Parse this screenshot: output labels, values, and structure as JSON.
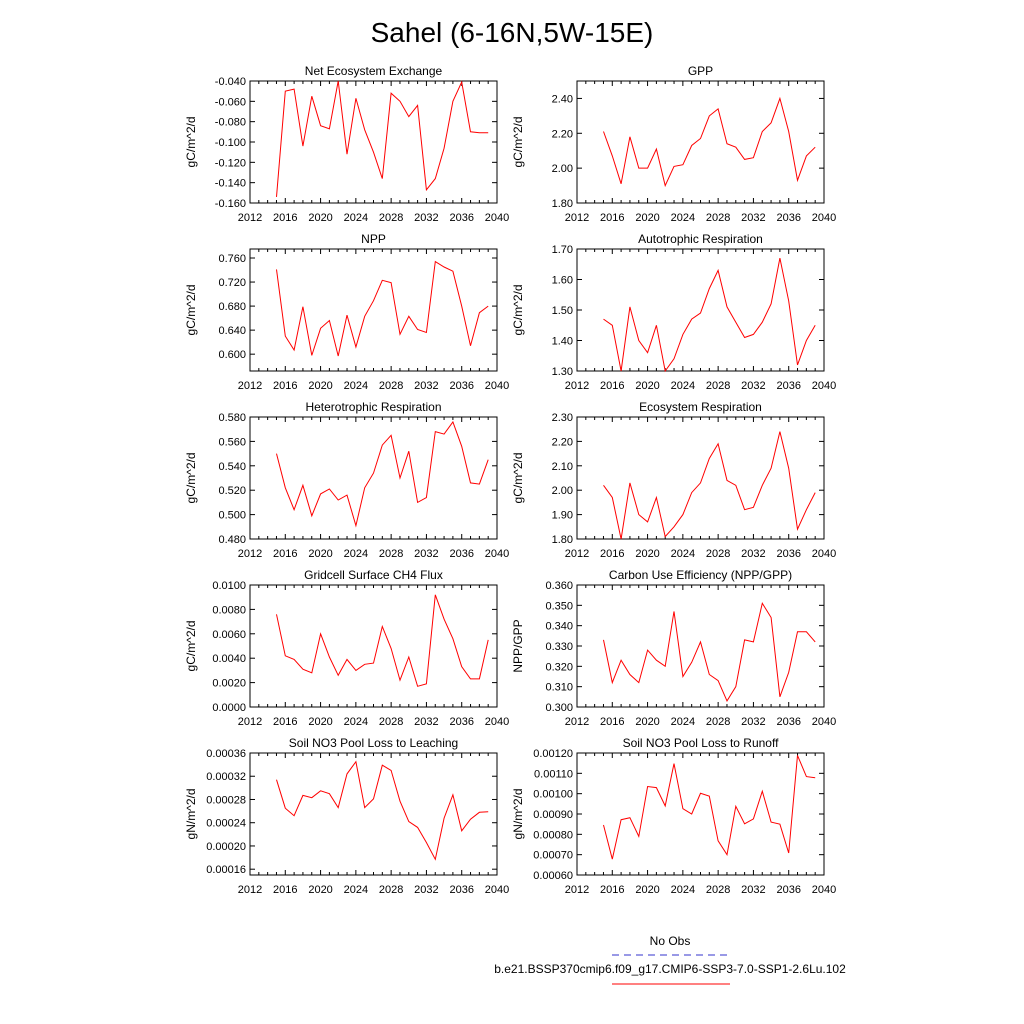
{
  "figure": {
    "title": "Sahel (6-16N,5W-15E)",
    "colors": {
      "series": "#ff0000",
      "obs": "#3333cc",
      "axis": "#000000"
    },
    "legend": {
      "obs_label": "No Obs",
      "case_label": "b.e21.BSSP370cmip6.f09_g17.CMIP6-SSP3-7.0-SSP1-2.6Lu.102"
    }
  },
  "chart_data": [
    {
      "type": "line",
      "title": "Net Ecosystem Exchange",
      "ylabel": "gC/m^2/d",
      "xlim": [
        2012,
        2040
      ],
      "xticks": [
        2012,
        2016,
        2020,
        2024,
        2028,
        2032,
        2036,
        2040
      ],
      "ylim": [
        -0.16,
        -0.04
      ],
      "yticks": [
        "-0.160",
        "-0.140",
        "-0.120",
        "-0.100",
        "-0.080",
        "-0.060",
        "-0.040"
      ],
      "x": [
        2015,
        2016,
        2017,
        2018,
        2019,
        2020,
        2021,
        2022,
        2023,
        2024,
        2025,
        2026,
        2027,
        2028,
        2029,
        2030,
        2031,
        2032,
        2033,
        2034,
        2035,
        2036,
        2037,
        2038,
        2039
      ],
      "series": [
        {
          "values": [
            -0.154,
            -0.05,
            -0.048,
            -0.104,
            -0.055,
            -0.084,
            -0.087,
            -0.04,
            -0.112,
            -0.057,
            -0.088,
            -0.11,
            -0.136,
            -0.052,
            -0.06,
            -0.075,
            -0.064,
            -0.147,
            -0.136,
            -0.106,
            -0.06,
            -0.041,
            -0.09,
            -0.091,
            -0.091
          ]
        }
      ]
    },
    {
      "type": "line",
      "title": "GPP",
      "ylabel": "gC/m^2/d",
      "xlim": [
        2012,
        2040
      ],
      "xticks": [
        2012,
        2016,
        2020,
        2024,
        2028,
        2032,
        2036,
        2040
      ],
      "ylim": [
        1.8,
        2.5
      ],
      "yticks": [
        "1.80",
        "2.00",
        "2.20",
        "2.40"
      ],
      "x": [
        2015,
        2016,
        2017,
        2018,
        2019,
        2020,
        2021,
        2022,
        2023,
        2024,
        2025,
        2026,
        2027,
        2028,
        2029,
        2030,
        2031,
        2032,
        2033,
        2034,
        2035,
        2036,
        2037,
        2038,
        2039
      ],
      "series": [
        {
          "values": [
            2.21,
            2.07,
            1.91,
            2.18,
            2.0,
            2.0,
            2.11,
            1.9,
            2.01,
            2.02,
            2.13,
            2.17,
            2.3,
            2.34,
            2.14,
            2.12,
            2.05,
            2.06,
            2.21,
            2.26,
            2.4,
            2.21,
            1.93,
            2.07,
            2.12
          ]
        }
      ]
    },
    {
      "type": "line",
      "title": "NPP",
      "ylabel": "gC/m^2/d",
      "xlim": [
        2012,
        2040
      ],
      "xticks": [
        2012,
        2016,
        2020,
        2024,
        2028,
        2032,
        2036,
        2040
      ],
      "ylim": [
        0.572,
        0.775
      ],
      "yticks": [
        "0.600",
        "0.640",
        "0.680",
        "0.720",
        "0.760"
      ],
      "x": [
        2015,
        2016,
        2017,
        2018,
        2019,
        2020,
        2021,
        2022,
        2023,
        2024,
        2025,
        2026,
        2027,
        2028,
        2029,
        2030,
        2031,
        2032,
        2033,
        2034,
        2035,
        2036,
        2037,
        2038,
        2039
      ],
      "series": [
        {
          "values": [
            0.741,
            0.63,
            0.607,
            0.679,
            0.598,
            0.643,
            0.656,
            0.597,
            0.665,
            0.612,
            0.663,
            0.689,
            0.723,
            0.719,
            0.633,
            0.663,
            0.641,
            0.636,
            0.754,
            0.745,
            0.738,
            0.68,
            0.614,
            0.669,
            0.68
          ]
        }
      ]
    },
    {
      "type": "line",
      "title": "Autotrophic Respiration",
      "ylabel": "gC/m^2/d",
      "xlim": [
        2012,
        2040
      ],
      "xticks": [
        2012,
        2016,
        2020,
        2024,
        2028,
        2032,
        2036,
        2040
      ],
      "ylim": [
        1.3,
        1.7
      ],
      "yticks": [
        "1.30",
        "1.40",
        "1.50",
        "1.60",
        "1.70"
      ],
      "x": [
        2015,
        2016,
        2017,
        2018,
        2019,
        2020,
        2021,
        2022,
        2023,
        2024,
        2025,
        2026,
        2027,
        2028,
        2029,
        2030,
        2031,
        2032,
        2033,
        2034,
        2035,
        2036,
        2037,
        2038,
        2039
      ],
      "series": [
        {
          "values": [
            1.47,
            1.45,
            1.3,
            1.51,
            1.4,
            1.36,
            1.45,
            1.3,
            1.34,
            1.42,
            1.47,
            1.49,
            1.57,
            1.63,
            1.51,
            1.46,
            1.41,
            1.42,
            1.46,
            1.52,
            1.67,
            1.53,
            1.32,
            1.4,
            1.45
          ]
        }
      ]
    },
    {
      "type": "line",
      "title": "Heterotrophic Respiration",
      "ylabel": "gC/m^2/d",
      "xlim": [
        2012,
        2040
      ],
      "xticks": [
        2012,
        2016,
        2020,
        2024,
        2028,
        2032,
        2036,
        2040
      ],
      "ylim": [
        0.48,
        0.58
      ],
      "yticks": [
        "0.480",
        "0.500",
        "0.520",
        "0.540",
        "0.560",
        "0.580"
      ],
      "x": [
        2015,
        2016,
        2017,
        2018,
        2019,
        2020,
        2021,
        2022,
        2023,
        2024,
        2025,
        2026,
        2027,
        2028,
        2029,
        2030,
        2031,
        2032,
        2033,
        2034,
        2035,
        2036,
        2037,
        2038,
        2039
      ],
      "series": [
        {
          "values": [
            0.55,
            0.522,
            0.504,
            0.524,
            0.499,
            0.517,
            0.521,
            0.512,
            0.516,
            0.491,
            0.522,
            0.534,
            0.557,
            0.565,
            0.53,
            0.552,
            0.51,
            0.514,
            0.568,
            0.566,
            0.576,
            0.556,
            0.526,
            0.525,
            0.545
          ]
        }
      ]
    },
    {
      "type": "line",
      "title": "Ecosystem Respiration",
      "ylabel": "gC/m^2/d",
      "xlim": [
        2012,
        2040
      ],
      "xticks": [
        2012,
        2016,
        2020,
        2024,
        2028,
        2032,
        2036,
        2040
      ],
      "ylim": [
        1.8,
        2.3
      ],
      "yticks": [
        "1.80",
        "1.90",
        "2.00",
        "2.10",
        "2.20",
        "2.30"
      ],
      "x": [
        2015,
        2016,
        2017,
        2018,
        2019,
        2020,
        2021,
        2022,
        2023,
        2024,
        2025,
        2026,
        2027,
        2028,
        2029,
        2030,
        2031,
        2032,
        2033,
        2034,
        2035,
        2036,
        2037,
        2038,
        2039
      ],
      "series": [
        {
          "values": [
            2.02,
            1.97,
            1.8,
            2.03,
            1.9,
            1.87,
            1.97,
            1.81,
            1.85,
            1.9,
            1.99,
            2.03,
            2.13,
            2.19,
            2.04,
            2.02,
            1.92,
            1.93,
            2.02,
            2.09,
            2.24,
            2.09,
            1.84,
            1.92,
            1.99
          ]
        }
      ]
    },
    {
      "type": "line",
      "title": "Gridcell Surface CH4 Flux",
      "ylabel": "gC/m^2/d",
      "xlim": [
        2012,
        2040
      ],
      "xticks": [
        2012,
        2016,
        2020,
        2024,
        2028,
        2032,
        2036,
        2040
      ],
      "ylim": [
        0.0,
        0.01
      ],
      "yticks": [
        "0.0000",
        "0.0020",
        "0.0040",
        "0.0060",
        "0.0080",
        "0.0100"
      ],
      "x": [
        2015,
        2016,
        2017,
        2018,
        2019,
        2020,
        2021,
        2022,
        2023,
        2024,
        2025,
        2026,
        2027,
        2028,
        2029,
        2030,
        2031,
        2032,
        2033,
        2034,
        2035,
        2036,
        2037,
        2038,
        2039
      ],
      "series": [
        {
          "values": [
            0.0076,
            0.0042,
            0.0039,
            0.0031,
            0.0028,
            0.006,
            0.0041,
            0.0026,
            0.0039,
            0.003,
            0.0035,
            0.0036,
            0.0066,
            0.0048,
            0.0022,
            0.0041,
            0.0017,
            0.0019,
            0.0092,
            0.0072,
            0.0056,
            0.0033,
            0.0023,
            0.0023,
            0.0055
          ]
        }
      ]
    },
    {
      "type": "line",
      "title": "Carbon Use Efficiency (NPP/GPP)",
      "ylabel": "NPP/GPP",
      "xlim": [
        2012,
        2040
      ],
      "xticks": [
        2012,
        2016,
        2020,
        2024,
        2028,
        2032,
        2036,
        2040
      ],
      "ylim": [
        0.3,
        0.36
      ],
      "yticks": [
        "0.300",
        "0.310",
        "0.320",
        "0.330",
        "0.340",
        "0.350",
        "0.360"
      ],
      "x": [
        2015,
        2016,
        2017,
        2018,
        2019,
        2020,
        2021,
        2022,
        2023,
        2024,
        2025,
        2026,
        2027,
        2028,
        2029,
        2030,
        2031,
        2032,
        2033,
        2034,
        2035,
        2036,
        2037,
        2038,
        2039
      ],
      "series": [
        {
          "values": [
            0.333,
            0.312,
            0.323,
            0.316,
            0.312,
            0.328,
            0.323,
            0.32,
            0.347,
            0.315,
            0.322,
            0.332,
            0.316,
            0.313,
            0.303,
            0.31,
            0.333,
            0.332,
            0.351,
            0.344,
            0.305,
            0.317,
            0.337,
            0.337,
            0.332
          ]
        }
      ]
    },
    {
      "type": "line",
      "title": "Soil NO3 Pool Loss to Leaching",
      "ylabel": "gN/m^2/d",
      "xlim": [
        2012,
        2040
      ],
      "xticks": [
        2012,
        2016,
        2020,
        2024,
        2028,
        2032,
        2036,
        2040
      ],
      "ylim": [
        0.00015,
        0.00036
      ],
      "yticks": [
        "0.00016",
        "0.00020",
        "0.00024",
        "0.00028",
        "0.00032",
        "0.00036"
      ],
      "x": [
        2015,
        2016,
        2017,
        2018,
        2019,
        2020,
        2021,
        2022,
        2023,
        2024,
        2025,
        2026,
        2027,
        2028,
        2029,
        2030,
        2031,
        2032,
        2033,
        2034,
        2035,
        2036,
        2037,
        2038,
        2039
      ],
      "series": [
        {
          "values": [
            0.000314,
            0.000265,
            0.000252,
            0.000287,
            0.000283,
            0.000295,
            0.00029,
            0.000266,
            0.000324,
            0.000345,
            0.000266,
            0.000281,
            0.000339,
            0.00033,
            0.000277,
            0.000242,
            0.000232,
            0.000206,
            0.000177,
            0.000248,
            0.000288,
            0.000226,
            0.000246,
            0.000258,
            0.000259
          ]
        }
      ]
    },
    {
      "type": "line",
      "title": "Soil NO3 Pool Loss to Runoff",
      "ylabel": "gN/m^2/d",
      "xlim": [
        2012,
        2040
      ],
      "xticks": [
        2012,
        2016,
        2020,
        2024,
        2028,
        2032,
        2036,
        2040
      ],
      "ylim": [
        0.0006,
        0.0012
      ],
      "yticks": [
        "0.00060",
        "0.00070",
        "0.00080",
        "0.00090",
        "0.00100",
        "0.00110",
        "0.00120"
      ],
      "x": [
        2015,
        2016,
        2017,
        2018,
        2019,
        2020,
        2021,
        2022,
        2023,
        2024,
        2025,
        2026,
        2027,
        2028,
        2029,
        2030,
        2031,
        2032,
        2033,
        2034,
        2035,
        2036,
        2037,
        2038,
        2039
      ],
      "series": [
        {
          "values": [
            0.000846,
            0.000678,
            0.000872,
            0.000882,
            0.00079,
            0.001035,
            0.00103,
            0.00094,
            0.001148,
            0.000926,
            0.0009,
            0.001002,
            0.000988,
            0.000768,
            0.0007,
            0.000938,
            0.000852,
            0.000876,
            0.001012,
            0.00086,
            0.00085,
            0.000708,
            0.001188,
            0.001084,
            0.001078
          ]
        }
      ]
    }
  ]
}
